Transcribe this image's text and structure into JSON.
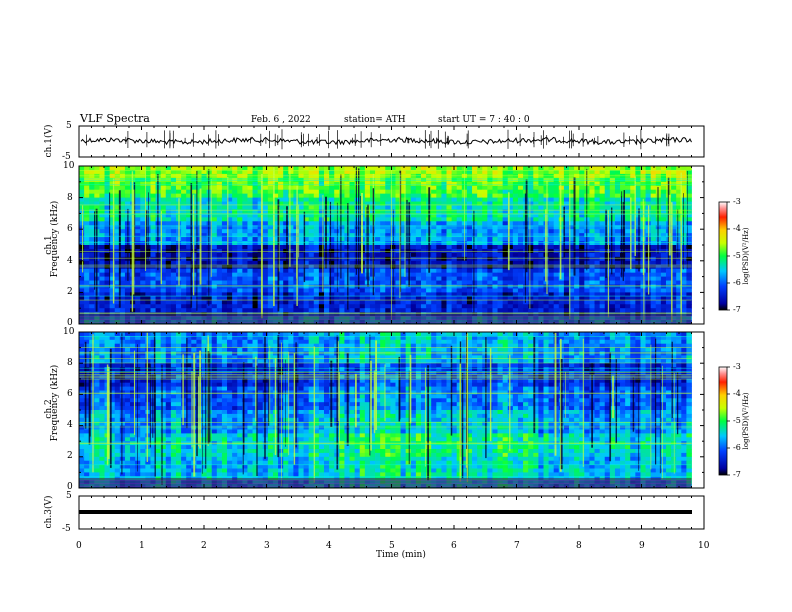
{
  "header": {
    "title": "VLF  Spectra",
    "date": "Feb. 6  , 2022",
    "station": "station= ATH",
    "start": "start  UT  =   7  : 40 : 0"
  },
  "chart_data": [
    {
      "type": "line",
      "name": "ch1-waveform",
      "ylabel": "ch.1(V)",
      "ylim": [
        -5,
        5
      ],
      "yticks": [
        "5",
        "-5"
      ],
      "xlim": [
        0,
        10
      ],
      "description_level": 0.0,
      "color": "#000000"
    },
    {
      "type": "heatmap",
      "name": "ch1-spectrogram",
      "ylabel": "ch.1\nFrequency  (kHz)",
      "ylabel_lines": [
        "ch.1",
        "Frequency  (kHz)"
      ],
      "ylim": [
        0,
        10
      ],
      "yticks": [
        "0",
        "2",
        "4",
        "6",
        "8",
        "10"
      ],
      "xlim": [
        0,
        10
      ],
      "data_end_min": 9.8,
      "colorbar": {
        "label": "log(PSD)(V²/Hz)",
        "range": [
          -7,
          -3
        ],
        "ticks": [
          "-3",
          "-4",
          "-5",
          "-6",
          "-7"
        ]
      }
    },
    {
      "type": "heatmap",
      "name": "ch2-spectrogram",
      "ylabel_lines": [
        "ch.2",
        "Frequency  (kHz)"
      ],
      "ylim": [
        0,
        10
      ],
      "yticks": [
        "0",
        "2",
        "4",
        "6",
        "8",
        "10"
      ],
      "xlim": [
        0,
        10
      ],
      "data_end_min": 9.8,
      "colorbar": {
        "label": "log(PSD)(V²/Hz)",
        "range": [
          -7,
          -3
        ],
        "ticks": [
          "-3",
          "-4",
          "-5",
          "-6",
          "-7"
        ]
      }
    },
    {
      "type": "line",
      "name": "ch3-waveform",
      "ylabel": "ch.3(V)",
      "ylim": [
        -5,
        5
      ],
      "yticks": [
        "5",
        "-5"
      ],
      "xlim": [
        0,
        10
      ],
      "level": 0.0,
      "color": "#000000"
    }
  ],
  "xaxis": {
    "label": "Time  (min)",
    "ticks": [
      "0",
      "1",
      "2",
      "3",
      "4",
      "5",
      "6",
      "7",
      "8",
      "9",
      "10"
    ],
    "range": [
      0,
      10
    ]
  }
}
